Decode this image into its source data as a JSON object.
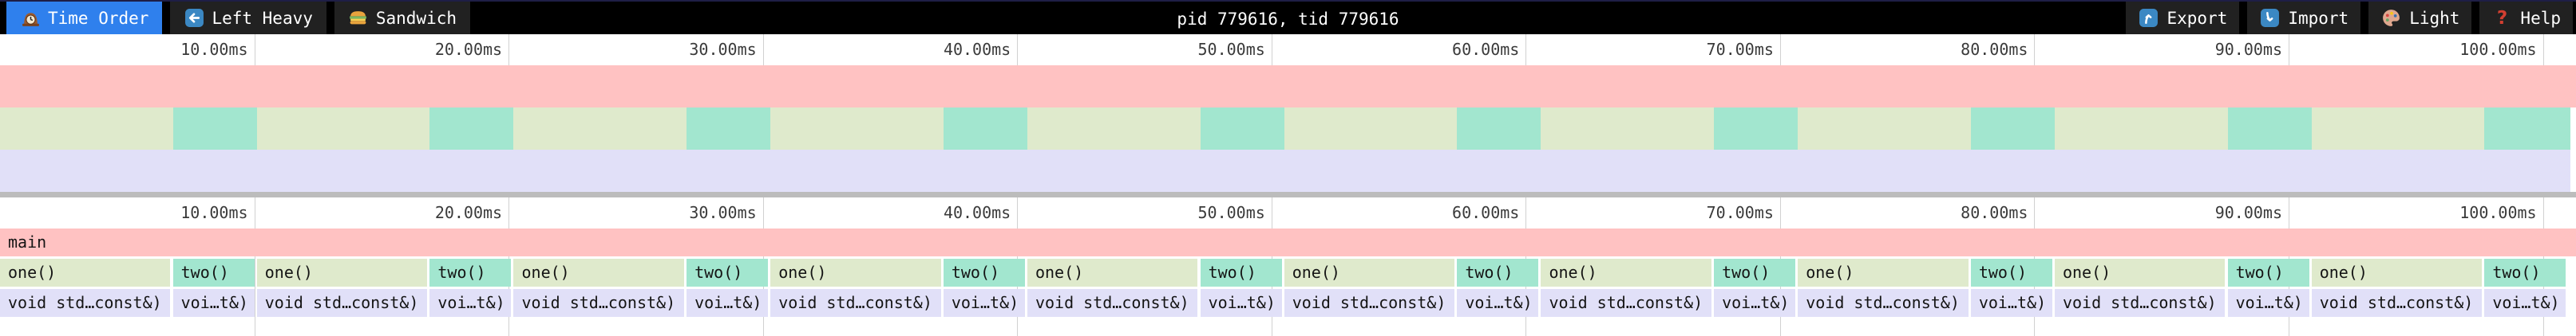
{
  "toolbar": {
    "tabs": [
      {
        "id": "time-order",
        "label": "Time Order",
        "icon": "clock-icon",
        "active": true
      },
      {
        "id": "left-heavy",
        "label": "Left Heavy",
        "icon": "left-arrow-icon",
        "active": false
      },
      {
        "id": "sandwich",
        "label": "Sandwich",
        "icon": "sandwich-icon",
        "active": false
      }
    ],
    "title": "pid 779616, tid 779616",
    "actions": [
      {
        "id": "export",
        "label": "Export",
        "icon": "export-icon"
      },
      {
        "id": "import",
        "label": "Import",
        "icon": "import-icon"
      },
      {
        "id": "theme",
        "label": "Light",
        "icon": "palette-icon"
      },
      {
        "id": "help",
        "label": "Help",
        "icon": "help-icon"
      }
    ]
  },
  "colors": {
    "accent_blue": "#2f80ed",
    "toolbar_bg": "#000000",
    "tab_bg": "#212121",
    "frame_main": "#ffc2c2",
    "frame_one": "#dfeacc",
    "frame_two": "#a2e6cf",
    "frame_void": "#e1e0f8",
    "divider": "#bcbcbc",
    "gridline": "rgba(0,0,0,0.18)",
    "axis_text": "#3a3a3a",
    "frame_text": "#141414"
  },
  "timeline": {
    "unit": "ms",
    "total_ms": 101.3,
    "ticks": [
      {
        "ms": 10,
        "label": "10.00ms"
      },
      {
        "ms": 20,
        "label": "20.00ms"
      },
      {
        "ms": 30,
        "label": "30.00ms"
      },
      {
        "ms": 40,
        "label": "40.00ms"
      },
      {
        "ms": 50,
        "label": "50.00ms"
      },
      {
        "ms": 60,
        "label": "60.00ms"
      },
      {
        "ms": 70,
        "label": "70.00ms"
      },
      {
        "ms": 80,
        "label": "80.00ms"
      },
      {
        "ms": 90,
        "label": "90.00ms"
      },
      {
        "ms": 100,
        "label": "100.00ms"
      }
    ]
  },
  "flamechart": {
    "depths": [
      {
        "name": "depth-0",
        "frames": [
          {
            "label": "main",
            "start_ms": 0.0,
            "end_ms": 101.3,
            "color": "frame_main"
          }
        ]
      },
      {
        "name": "depth-1",
        "frames": [
          {
            "label": "one()",
            "start_ms": 0.0,
            "end_ms": 6.7,
            "color": "frame_one"
          },
          {
            "label": "two()",
            "start_ms": 6.8,
            "end_ms": 10.0,
            "color": "frame_two"
          },
          {
            "label": "one()",
            "start_ms": 10.1,
            "end_ms": 16.8,
            "color": "frame_one"
          },
          {
            "label": "two()",
            "start_ms": 16.9,
            "end_ms": 20.1,
            "color": "frame_two"
          },
          {
            "label": "one()",
            "start_ms": 20.2,
            "end_ms": 26.9,
            "color": "frame_one"
          },
          {
            "label": "two()",
            "start_ms": 27.0,
            "end_ms": 30.2,
            "color": "frame_two"
          },
          {
            "label": "one()",
            "start_ms": 30.3,
            "end_ms": 37.0,
            "color": "frame_one"
          },
          {
            "label": "two()",
            "start_ms": 37.1,
            "end_ms": 40.3,
            "color": "frame_two"
          },
          {
            "label": "one()",
            "start_ms": 40.4,
            "end_ms": 47.1,
            "color": "frame_one"
          },
          {
            "label": "two()",
            "start_ms": 47.2,
            "end_ms": 50.4,
            "color": "frame_two"
          },
          {
            "label": "one()",
            "start_ms": 50.5,
            "end_ms": 57.2,
            "color": "frame_one"
          },
          {
            "label": "two()",
            "start_ms": 57.3,
            "end_ms": 60.5,
            "color": "frame_two"
          },
          {
            "label": "one()",
            "start_ms": 60.6,
            "end_ms": 67.3,
            "color": "frame_one"
          },
          {
            "label": "two()",
            "start_ms": 67.4,
            "end_ms": 70.6,
            "color": "frame_two"
          },
          {
            "label": "one()",
            "start_ms": 70.7,
            "end_ms": 77.4,
            "color": "frame_one"
          },
          {
            "label": "two()",
            "start_ms": 77.5,
            "end_ms": 80.7,
            "color": "frame_two"
          },
          {
            "label": "one()",
            "start_ms": 80.8,
            "end_ms": 87.5,
            "color": "frame_one"
          },
          {
            "label": "two()",
            "start_ms": 87.6,
            "end_ms": 90.8,
            "color": "frame_two"
          },
          {
            "label": "one()",
            "start_ms": 90.9,
            "end_ms": 97.6,
            "color": "frame_one"
          },
          {
            "label": "two()",
            "start_ms": 97.7,
            "end_ms": 100.9,
            "color": "frame_two"
          }
        ]
      },
      {
        "name": "depth-2",
        "frames": [
          {
            "label": "void std…const&)",
            "start_ms": 0.0,
            "end_ms": 6.7,
            "color": "frame_void"
          },
          {
            "label": "voi…t&)",
            "start_ms": 6.8,
            "end_ms": 10.0,
            "color": "frame_void"
          },
          {
            "label": "void std…const&)",
            "start_ms": 10.1,
            "end_ms": 16.8,
            "color": "frame_void"
          },
          {
            "label": "voi…t&)",
            "start_ms": 16.9,
            "end_ms": 20.1,
            "color": "frame_void"
          },
          {
            "label": "void std…const&)",
            "start_ms": 20.2,
            "end_ms": 26.9,
            "color": "frame_void"
          },
          {
            "label": "voi…t&)",
            "start_ms": 27.0,
            "end_ms": 30.2,
            "color": "frame_void"
          },
          {
            "label": "void std…const&)",
            "start_ms": 30.3,
            "end_ms": 37.0,
            "color": "frame_void"
          },
          {
            "label": "voi…t&)",
            "start_ms": 37.1,
            "end_ms": 40.3,
            "color": "frame_void"
          },
          {
            "label": "void std…const&)",
            "start_ms": 40.4,
            "end_ms": 47.1,
            "color": "frame_void"
          },
          {
            "label": "voi…t&)",
            "start_ms": 47.2,
            "end_ms": 50.4,
            "color": "frame_void"
          },
          {
            "label": "void std…const&)",
            "start_ms": 50.5,
            "end_ms": 57.2,
            "color": "frame_void"
          },
          {
            "label": "voi…t&)",
            "start_ms": 57.3,
            "end_ms": 60.5,
            "color": "frame_void"
          },
          {
            "label": "void std…const&)",
            "start_ms": 60.6,
            "end_ms": 67.3,
            "color": "frame_void"
          },
          {
            "label": "voi…t&)",
            "start_ms": 67.4,
            "end_ms": 70.6,
            "color": "frame_void"
          },
          {
            "label": "void std…const&)",
            "start_ms": 70.7,
            "end_ms": 77.4,
            "color": "frame_void"
          },
          {
            "label": "voi…t&)",
            "start_ms": 77.5,
            "end_ms": 80.7,
            "color": "frame_void"
          },
          {
            "label": "void std…const&)",
            "start_ms": 80.8,
            "end_ms": 87.5,
            "color": "frame_void"
          },
          {
            "label": "voi…t&)",
            "start_ms": 87.6,
            "end_ms": 90.8,
            "color": "frame_void"
          },
          {
            "label": "void std…const&)",
            "start_ms": 90.9,
            "end_ms": 97.6,
            "color": "frame_void"
          },
          {
            "label": "voi…t&)",
            "start_ms": 97.7,
            "end_ms": 100.9,
            "color": "frame_void"
          }
        ]
      }
    ]
  },
  "layout_note": ""
}
